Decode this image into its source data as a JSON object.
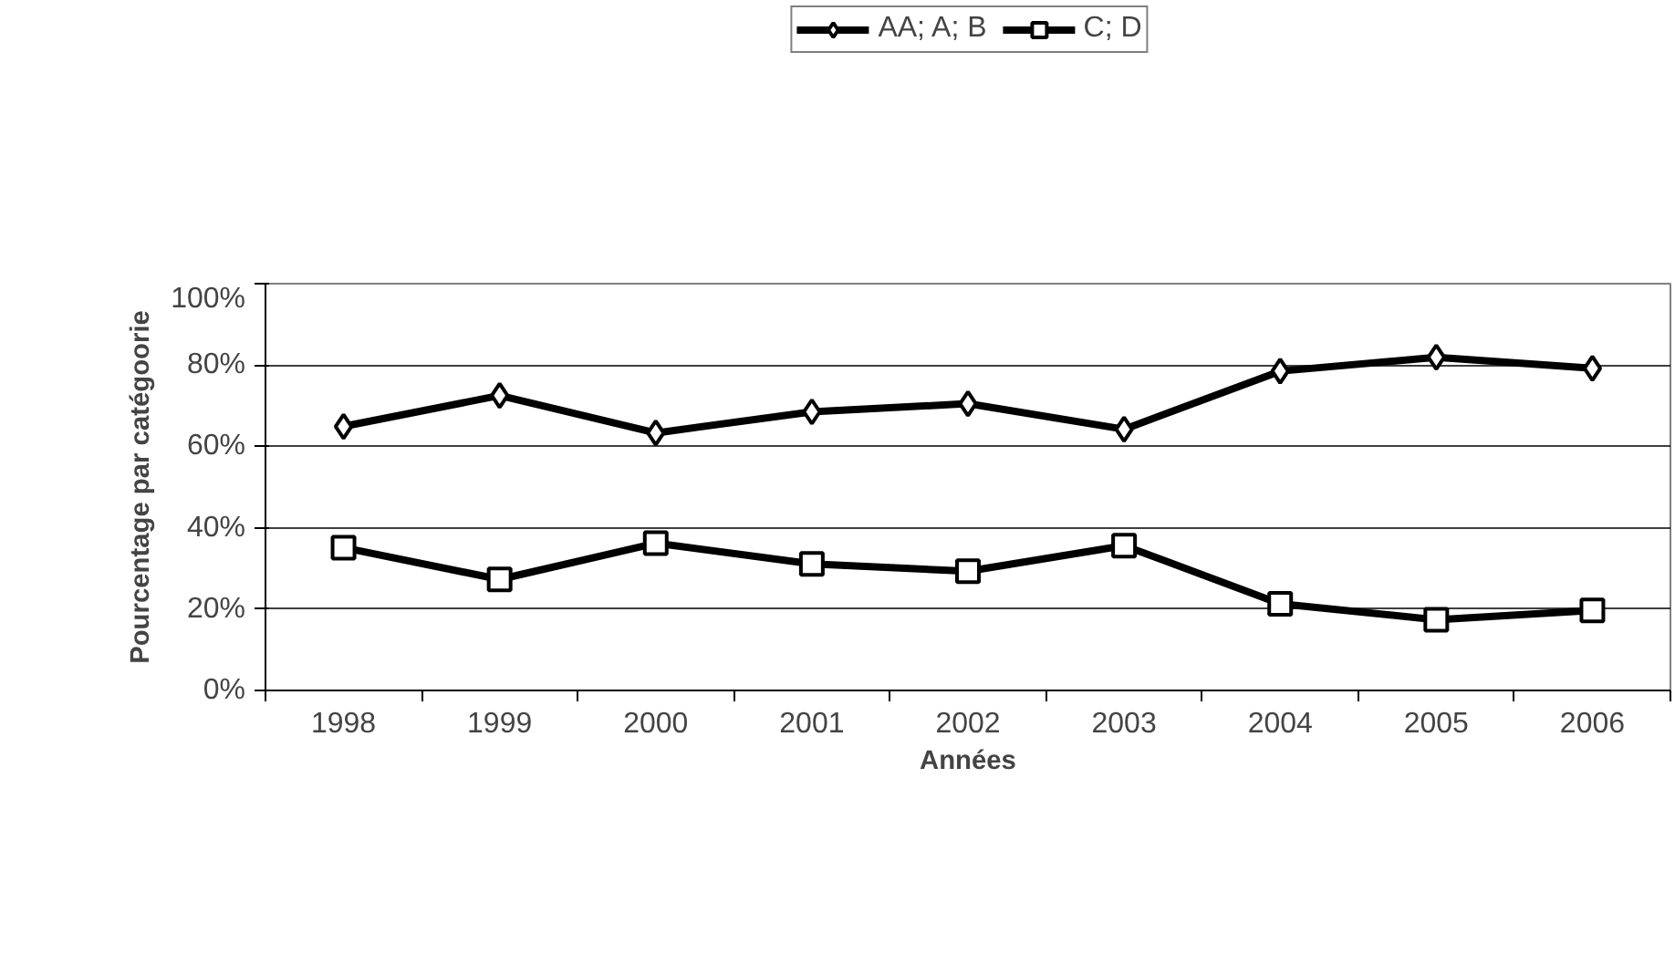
{
  "chart_data": {
    "type": "line",
    "xlabel": "Années",
    "ylabel": "Pourcentage par catégoorie",
    "categories": [
      "1998",
      "1999",
      "2000",
      "2001",
      "2002",
      "2003",
      "2004",
      "2005",
      "2006"
    ],
    "series": [
      {
        "name": "AA; A; B",
        "color": "#000000",
        "marker": "diamond",
        "values": [
          64.9,
          72.5,
          63.3,
          68.5,
          70.5,
          64.2,
          78.5,
          81.9,
          79.2
        ]
      },
      {
        "name": "C; D",
        "color": "#000000",
        "marker": "square",
        "values": [
          35.1,
          27.3,
          36.2,
          31.1,
          29.3,
          35.6,
          21.3,
          17.4,
          19.7
        ]
      }
    ],
    "ylim": [
      0,
      100
    ],
    "yticks": [
      {
        "value": 0,
        "label": "0%"
      },
      {
        "value": 20,
        "label": "20%"
      },
      {
        "value": 40,
        "label": "40%"
      },
      {
        "value": 60,
        "label": "60%"
      },
      {
        "value": 80,
        "label": "80%"
      },
      {
        "value": 100,
        "label": "100%"
      }
    ],
    "grid": "y",
    "legend": "top",
    "line_style": "solid"
  }
}
